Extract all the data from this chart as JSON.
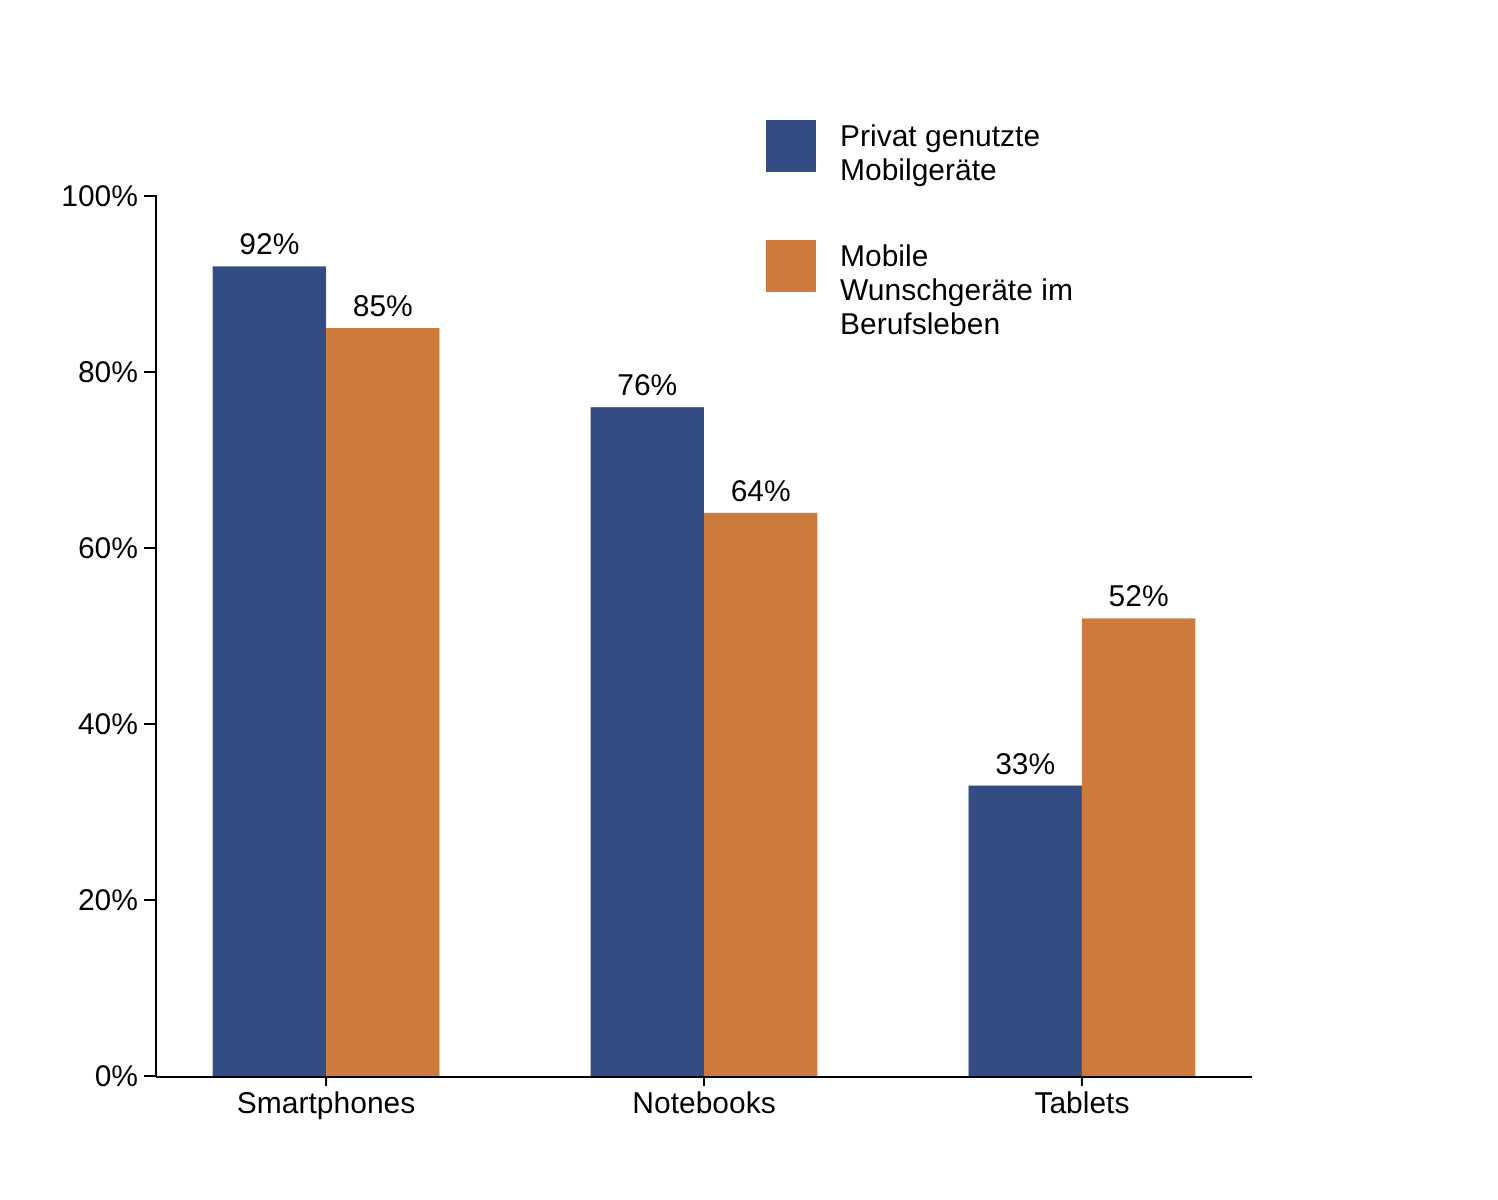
{
  "chart_data": {
    "type": "bar",
    "categories": [
      "Smartphones",
      "Notebooks",
      "Tablets"
    ],
    "series": [
      {
        "name": "Privat genutzte Mobilgeräte",
        "color": "#334d84",
        "values": [
          92,
          76,
          33
        ],
        "value_labels": [
          "92%",
          "76%",
          "33%"
        ]
      },
      {
        "name": "Mobile Wunschgeräte im Berufsleben",
        "color": "#cd7a3d",
        "values": [
          85,
          64,
          52
        ],
        "value_labels": [
          "85%",
          "64%",
          "52%"
        ]
      }
    ],
    "ylim": [
      0,
      100
    ],
    "yticks": [
      {
        "value": 0,
        "label": "0%"
      },
      {
        "value": 20,
        "label": "20%"
      },
      {
        "value": 40,
        "label": "40%"
      },
      {
        "value": 60,
        "label": "60%"
      },
      {
        "value": 80,
        "label": "80%"
      },
      {
        "value": 100,
        "label": "100%"
      }
    ],
    "grid": false,
    "legend": "top right"
  }
}
